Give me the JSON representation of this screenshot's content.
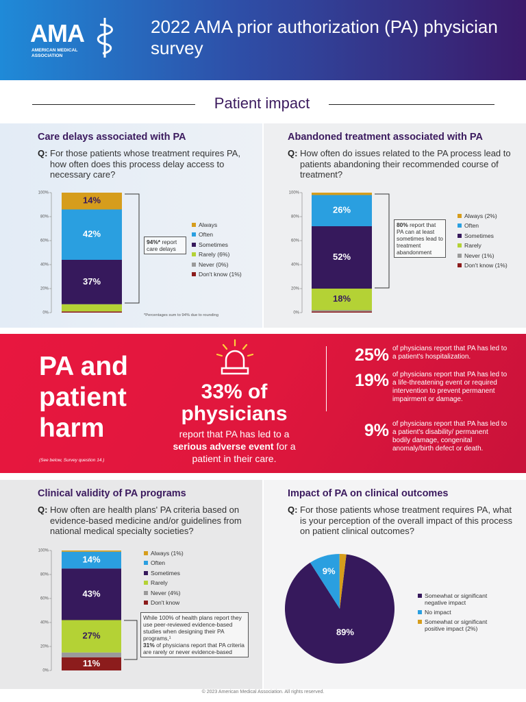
{
  "header": {
    "logo": "AMA",
    "logo_subtitle": "AMERICAN MEDICAL ASSOCIATION",
    "title": "2022 AMA prior authorization (PA) physician survey"
  },
  "section_title": "Patient impact",
  "chart_data": [
    {
      "type": "stacked_bar",
      "title": "Care delays associated with PA",
      "question_label": "Q:",
      "question": "For those patients whose treatment requires PA, how often does this process delay access to necessary care?",
      "categories": [
        null
      ],
      "ylim": [
        0,
        100
      ],
      "yticks": [
        {
          "value": 0,
          "label": "0%"
        },
        {
          "value": 20,
          "label": "20%"
        },
        {
          "value": 40,
          "label": "40%"
        },
        {
          "value": 60,
          "label": "60%"
        },
        {
          "value": 80,
          "label": "80%"
        },
        {
          "value": 100,
          "label": "100%"
        }
      ],
      "series": [
        {
          "name": "Always",
          "color": "#d69d1c",
          "values": [
            14
          ],
          "value_labels": [
            "14%"
          ]
        },
        {
          "name": "Often",
          "color": "#2a9fe0",
          "values": [
            42
          ],
          "value_labels": [
            "42%"
          ]
        },
        {
          "name": "Sometimes",
          "color": "#36195c",
          "values": [
            37
          ],
          "value_labels": [
            "37%"
          ]
        },
        {
          "name": "Rarely (6%)",
          "color": "#b4d235",
          "values": [
            6
          ]
        },
        {
          "name": "Never (0%)",
          "color": "#9a9a9a",
          "values": [
            0
          ]
        },
        {
          "name": "Don't know (1%)",
          "color": "#8c1c1c",
          "values": [
            1
          ]
        }
      ],
      "annotation": [
        {
          "text": "94%*",
          "bold": true
        },
        {
          "text": "report care delays"
        }
      ],
      "note": "*Percentages sum to 94% due to rounding"
    },
    {
      "type": "stacked_bar",
      "title": "Abandoned treatment associated with PA",
      "question_label": "Q:",
      "question": "How often do issues related to the PA process lead to patients abandoning their recommended course of treatment?",
      "categories": [
        null
      ],
      "ylim": [
        0,
        100
      ],
      "yticks": [
        {
          "value": 0,
          "label": "0%"
        },
        {
          "value": 20,
          "label": "20%"
        },
        {
          "value": 40,
          "label": "40%"
        },
        {
          "value": 60,
          "label": "60%"
        },
        {
          "value": 80,
          "label": "80%"
        },
        {
          "value": 100,
          "label": "100%"
        }
      ],
      "series": [
        {
          "name": "Always (2%)",
          "color": "#d69d1c",
          "values": [
            2
          ]
        },
        {
          "name": "Often",
          "color": "#2a9fe0",
          "values": [
            26
          ],
          "value_labels": [
            "26%"
          ]
        },
        {
          "name": "Sometimes",
          "color": "#36195c",
          "values": [
            52
          ],
          "value_labels": [
            "52%"
          ]
        },
        {
          "name": "Rarely",
          "color": "#b4d235",
          "values": [
            18
          ],
          "value_labels": [
            "18%"
          ]
        },
        {
          "name": "Never (1%)",
          "color": "#9a9a9a",
          "values": [
            1
          ]
        },
        {
          "name": "Don't know (1%)",
          "color": "#8c1c1c",
          "values": [
            1
          ]
        }
      ],
      "annotation": [
        {
          "text": "80%",
          "bold": true
        },
        {
          "text": "report that PA can at least sometimes lead to treatment abandonment"
        }
      ]
    },
    {
      "type": "stacked_bar",
      "title": "Clinical validity of PA programs",
      "question_label": "Q:",
      "question": "How often are health plans' PA criteria based on evidence-based medicine and/or guidelines from national medical specialty societies?",
      "categories": [
        null
      ],
      "ylim": [
        0,
        100
      ],
      "yticks": [
        {
          "value": 0,
          "label": "0%"
        },
        {
          "value": 20,
          "label": "20%"
        },
        {
          "value": 40,
          "label": "40%"
        },
        {
          "value": 60,
          "label": "60%"
        },
        {
          "value": 80,
          "label": "80%"
        },
        {
          "value": 100,
          "label": "100%"
        }
      ],
      "series": [
        {
          "name": "Always (1%)",
          "color": "#d69d1c",
          "values": [
            1
          ]
        },
        {
          "name": "Often",
          "color": "#2a9fe0",
          "values": [
            14
          ],
          "value_labels": [
            "14%"
          ]
        },
        {
          "name": "Sometimes",
          "color": "#36195c",
          "values": [
            43
          ],
          "value_labels": [
            "43%"
          ]
        },
        {
          "name": "Rarely",
          "color": "#b4d235",
          "values": [
            27
          ],
          "value_labels": [
            "27%"
          ]
        },
        {
          "name": "Never (4%)",
          "color": "#9a9a9a",
          "values": [
            4
          ]
        },
        {
          "name": "Don't know",
          "color": "#8c1c1c",
          "values": [
            11
          ],
          "value_labels": [
            "11%"
          ]
        }
      ],
      "annotation": [
        {
          "text": "While 100% of health plans report they use peer-reviewed evidence-based studies when designing their PA programs,¹",
          "block": true
        },
        {
          "text": "31%",
          "bold": true
        },
        {
          "text": "of physicians report that PA criteria are rarely or never evidence-based"
        }
      ]
    },
    {
      "type": "pie",
      "title": "Impact of PA on clinical outcomes",
      "question_label": "Q:",
      "question": "For those patients whose treatment requires PA, what is your perception of the overall impact of this process on patient clinical outcomes?",
      "categories": [
        "Somewhat or significant negative impact",
        "No impact",
        "Somewhat or significant positive impact (2%)"
      ],
      "values": [
        89,
        9,
        2
      ],
      "value_labels": [
        "89%",
        "9%",
        null
      ],
      "colors": [
        "#36195c",
        "#2a9fe0",
        "#d69d1c"
      ]
    }
  ],
  "harm": {
    "title": "PA and patient harm",
    "headline": "33% of physicians",
    "text_before": "report that PA has led to a",
    "text_bold": "serious adverse event",
    "text_after": "for a patient in their care.",
    "note": "(See below, Survey question 14.)",
    "stats": [
      {
        "value": "25%",
        "text": "of physicians report that PA has led to a patient's hospitalization."
      },
      {
        "value": "19%",
        "text": "of physicians report that PA has led to a life-threatening event or required intervention to prevent permanent impairment or damage."
      },
      {
        "value": "9%",
        "text": "of physicians report that PA has led to a patient's disability/ permanent bodily damage, congenital anomaly/birth defect or death."
      }
    ]
  },
  "footer": "© 2023 American Medical Association. All rights reserved."
}
